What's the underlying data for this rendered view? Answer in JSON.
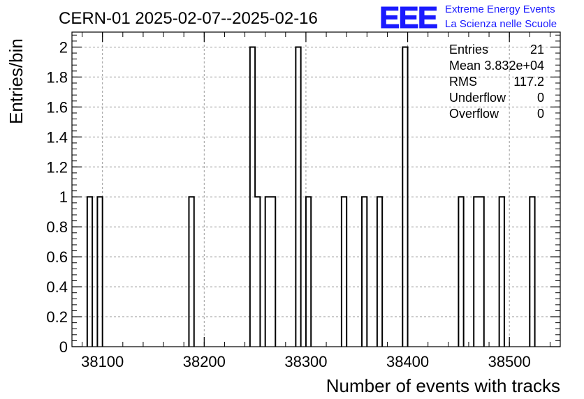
{
  "chart_data": {
    "type": "bar",
    "title": "CERN-01 2025-02-07--2025-02-16",
    "xlabel": "Number of events with tracks",
    "ylabel": "Entries/bin",
    "xlim": [
      38070,
      38550
    ],
    "ylim": [
      0,
      2.1
    ],
    "bin_width": 5,
    "x_ticks": [
      "38100",
      "38200",
      "38300",
      "38400",
      "38500"
    ],
    "y_ticks": [
      "0",
      "0.2",
      "0.4",
      "0.6",
      "0.8",
      "1",
      "1.2",
      "1.4",
      "1.6",
      "1.8",
      "2"
    ],
    "grid": true,
    "bins": [
      {
        "x": 38085,
        "y": 1
      },
      {
        "x": 38095,
        "y": 1
      },
      {
        "x": 38185,
        "y": 1
      },
      {
        "x": 38245,
        "y": 2
      },
      {
        "x": 38250,
        "y": 1
      },
      {
        "x": 38260,
        "y": 1
      },
      {
        "x": 38265,
        "y": 1
      },
      {
        "x": 38290,
        "y": 2
      },
      {
        "x": 38300,
        "y": 1
      },
      {
        "x": 38335,
        "y": 1
      },
      {
        "x": 38355,
        "y": 1
      },
      {
        "x": 38370,
        "y": 1
      },
      {
        "x": 38395,
        "y": 2
      },
      {
        "x": 38450,
        "y": 1
      },
      {
        "x": 38465,
        "y": 1
      },
      {
        "x": 38470,
        "y": 1
      },
      {
        "x": 38490,
        "y": 1
      },
      {
        "x": 38520,
        "y": 1
      }
    ],
    "stats": [
      {
        "label": "Entries",
        "value": "21"
      },
      {
        "label": "Mean",
        "value": "3.832e+04"
      },
      {
        "label": "RMS",
        "value": "117.2"
      },
      {
        "label": "Underflow",
        "value": "0"
      },
      {
        "label": "Overflow",
        "value": "0"
      }
    ]
  },
  "logo": {
    "mark": "EEE",
    "line1": "Extreme Energy Events",
    "line2": "La Scienza nelle Scuole",
    "color": "#1a1aff"
  }
}
